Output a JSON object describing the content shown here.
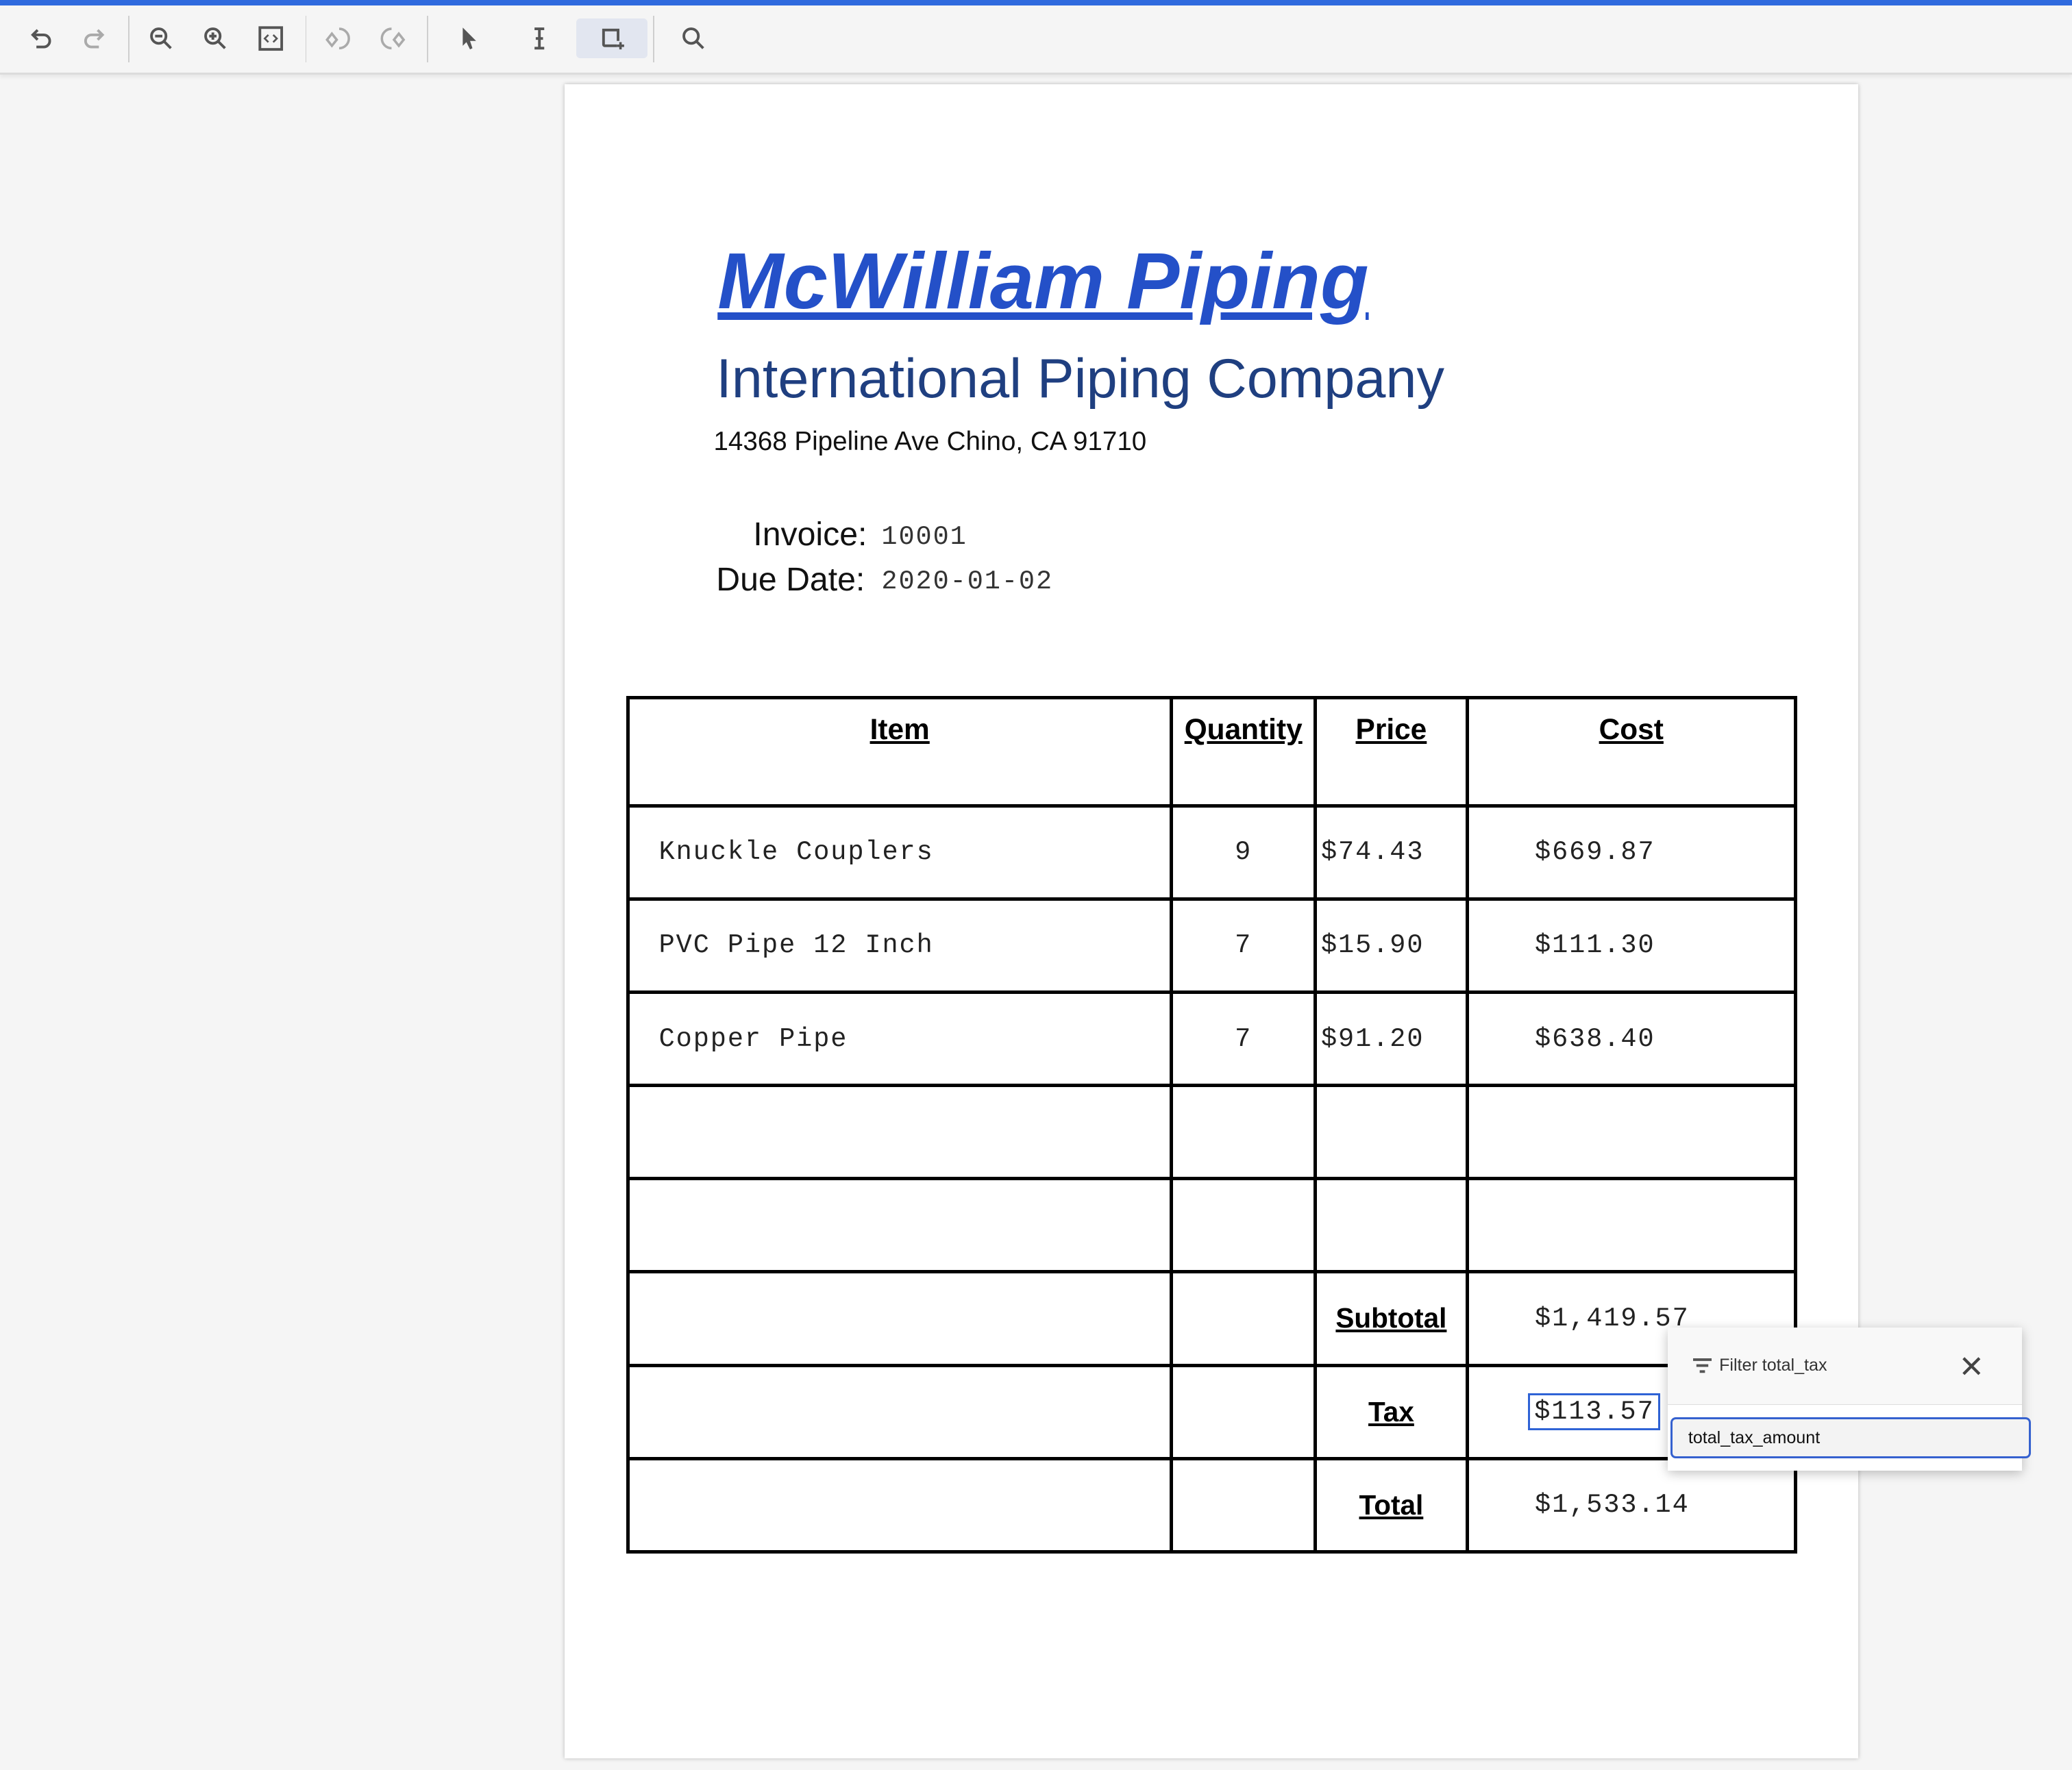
{
  "toolbar": {
    "buttons": [
      "undo",
      "redo",
      "zoom-out",
      "zoom-in",
      "fit-page",
      "rotate-left",
      "rotate-right",
      "select-pointer",
      "text-select",
      "draw-box",
      "search"
    ],
    "active": "draw-box"
  },
  "document": {
    "company_name": "McWilliam Piping",
    "subtitle": "International Piping Company",
    "address": "14368 Pipeline Ave Chino, CA 91710",
    "invoice_label": "Invoice:",
    "invoice_number": "10001",
    "due_date_label": "Due Date:",
    "due_date": "2020-01-02"
  },
  "table": {
    "headers": [
      "Item",
      "Quantity",
      "Price",
      "Cost"
    ],
    "rows": [
      {
        "item": "Knuckle Couplers",
        "qty": "9",
        "price": "$74.43",
        "cost": "$669.87"
      },
      {
        "item": "PVC Pipe 12 Inch",
        "qty": "7",
        "price": "$15.90",
        "cost": "$111.30"
      },
      {
        "item": "Copper Pipe",
        "qty": "7",
        "price": "$91.20",
        "cost": "$638.40"
      }
    ],
    "subtotal_label": "Subtotal",
    "subtotal": "$1,419.57",
    "tax_label": "Tax",
    "tax": "$113.57",
    "total_label": "Total",
    "total": "$1,533.14"
  },
  "popup": {
    "title": "Filter total_tax",
    "input_value": "total_tax_amount"
  },
  "colors": {
    "accent": "#2f6ade",
    "title": "#2450c8",
    "subtitle": "#1f3f80",
    "highlight": "#2f63d6"
  }
}
